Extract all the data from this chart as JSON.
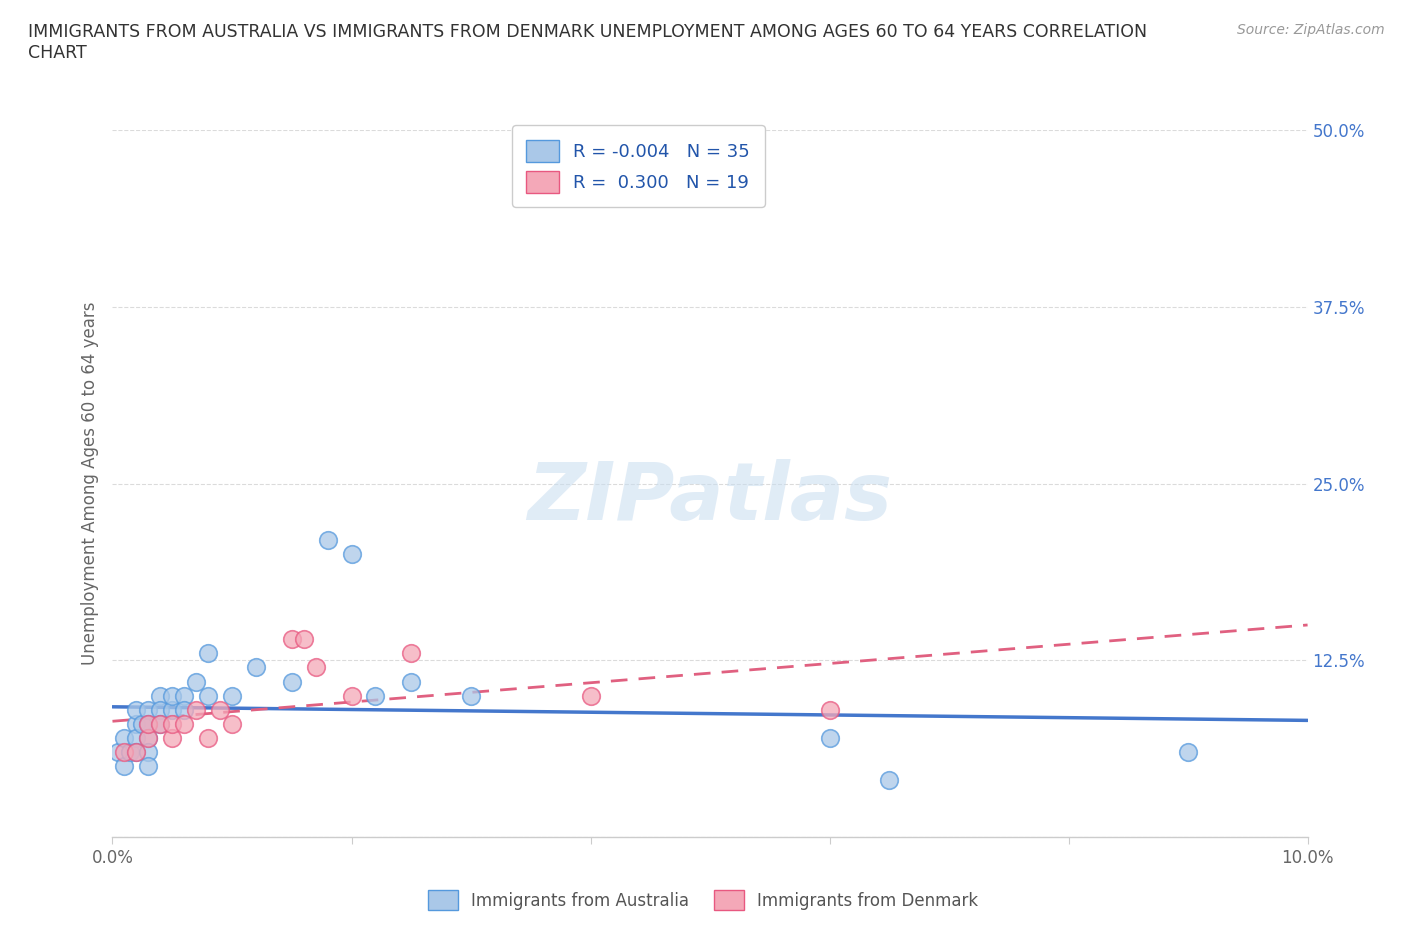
{
  "title": "IMMIGRANTS FROM AUSTRALIA VS IMMIGRANTS FROM DENMARK UNEMPLOYMENT AMONG AGES 60 TO 64 YEARS CORRELATION\nCHART",
  "source": "Source: ZipAtlas.com",
  "ylabel": "Unemployment Among Ages 60 to 64 years",
  "xlim": [
    0.0,
    0.1
  ],
  "ylim": [
    0.0,
    0.5
  ],
  "xticks": [
    0.0,
    0.02,
    0.04,
    0.06,
    0.08,
    0.1
  ],
  "xticklabels": [
    "0.0%",
    "",
    "",
    "",
    "",
    "10.0%"
  ],
  "yticks": [
    0.0,
    0.125,
    0.25,
    0.375,
    0.5
  ],
  "yticklabels": [
    "",
    "12.5%",
    "25.0%",
    "37.5%",
    "50.0%"
  ],
  "australia_x": [
    0.0005,
    0.001,
    0.001,
    0.0015,
    0.002,
    0.002,
    0.002,
    0.002,
    0.0025,
    0.003,
    0.003,
    0.003,
    0.003,
    0.003,
    0.004,
    0.004,
    0.004,
    0.005,
    0.005,
    0.006,
    0.006,
    0.007,
    0.008,
    0.008,
    0.01,
    0.012,
    0.015,
    0.018,
    0.02,
    0.022,
    0.025,
    0.03,
    0.06,
    0.065,
    0.09
  ],
  "australia_y": [
    0.06,
    0.05,
    0.07,
    0.06,
    0.08,
    0.07,
    0.09,
    0.06,
    0.08,
    0.09,
    0.08,
    0.07,
    0.06,
    0.05,
    0.1,
    0.09,
    0.08,
    0.09,
    0.1,
    0.1,
    0.09,
    0.11,
    0.1,
    0.13,
    0.1,
    0.12,
    0.11,
    0.21,
    0.2,
    0.1,
    0.11,
    0.1,
    0.07,
    0.04,
    0.06
  ],
  "denmark_x": [
    0.001,
    0.002,
    0.003,
    0.003,
    0.004,
    0.005,
    0.005,
    0.006,
    0.007,
    0.008,
    0.009,
    0.01,
    0.015,
    0.016,
    0.017,
    0.02,
    0.025,
    0.04,
    0.06
  ],
  "denmark_y": [
    0.06,
    0.06,
    0.07,
    0.08,
    0.08,
    0.07,
    0.08,
    0.08,
    0.09,
    0.07,
    0.09,
    0.08,
    0.14,
    0.14,
    0.12,
    0.1,
    0.13,
    0.1,
    0.09
  ],
  "australia_color": "#aac8e8",
  "denmark_color": "#f4a8b8",
  "australia_edge_color": "#5599dd",
  "denmark_edge_color": "#e85880",
  "australia_line_color": "#4477cc",
  "denmark_line_color": "#e06080",
  "R_australia": -0.004,
  "N_australia": 35,
  "R_denmark": 0.3,
  "N_denmark": 19,
  "watermark_text": "ZIPatlas",
  "background_color": "#ffffff",
  "tick_label_color": "#4477cc",
  "grid_color": "#cccccc"
}
